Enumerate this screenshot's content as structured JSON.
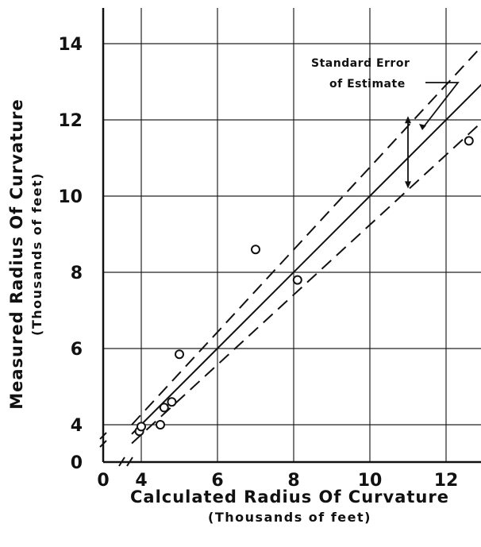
{
  "chart_data": {
    "type": "scatter",
    "title": "",
    "xlabel": "Calculated Radius Of Curvature",
    "xlabel_sub": "(Thousands of feet)",
    "ylabel": "Measured Radius Of Curvature",
    "ylabel_sub": "(Thousands of feet)",
    "x_axis_break": true,
    "y_axis_break": true,
    "x_ticks": [
      {
        "value": 0,
        "label": "0"
      },
      {
        "value": 4,
        "label": "4"
      },
      {
        "value": 6,
        "label": "6"
      },
      {
        "value": 8,
        "label": "8"
      },
      {
        "value": 10,
        "label": "10"
      },
      {
        "value": 12,
        "label": "12"
      }
    ],
    "y_ticks": [
      {
        "value": 0,
        "label": "0"
      },
      {
        "value": 4,
        "label": "4"
      },
      {
        "value": 6,
        "label": "6"
      },
      {
        "value": 8,
        "label": "8"
      },
      {
        "value": 10,
        "label": "10"
      },
      {
        "value": 12,
        "label": "12"
      },
      {
        "value": 14,
        "label": "14"
      }
    ],
    "grid": true,
    "points": [
      {
        "x": 3.8,
        "y": 3.3
      },
      {
        "x": 4.0,
        "y": 3.8
      },
      {
        "x": 4.5,
        "y": 4.0
      },
      {
        "x": 4.6,
        "y": 4.45
      },
      {
        "x": 4.8,
        "y": 4.6
      },
      {
        "x": 5.0,
        "y": 5.85
      },
      {
        "x": 7.0,
        "y": 8.6
      },
      {
        "x": 8.1,
        "y": 7.8
      },
      {
        "x": 12.6,
        "y": 11.45
      }
    ],
    "regression_line": {
      "x": [
        3.0,
        13.0
      ],
      "y": [
        3.0,
        13.0
      ]
    },
    "error_band": {
      "offset": 1.0,
      "style": "dashed"
    },
    "annotation": {
      "line1": "Standard Error",
      "line2": "of Estimate",
      "arrow_x": 11.0,
      "arrow_y": [
        10.2,
        12.1
      ]
    }
  }
}
